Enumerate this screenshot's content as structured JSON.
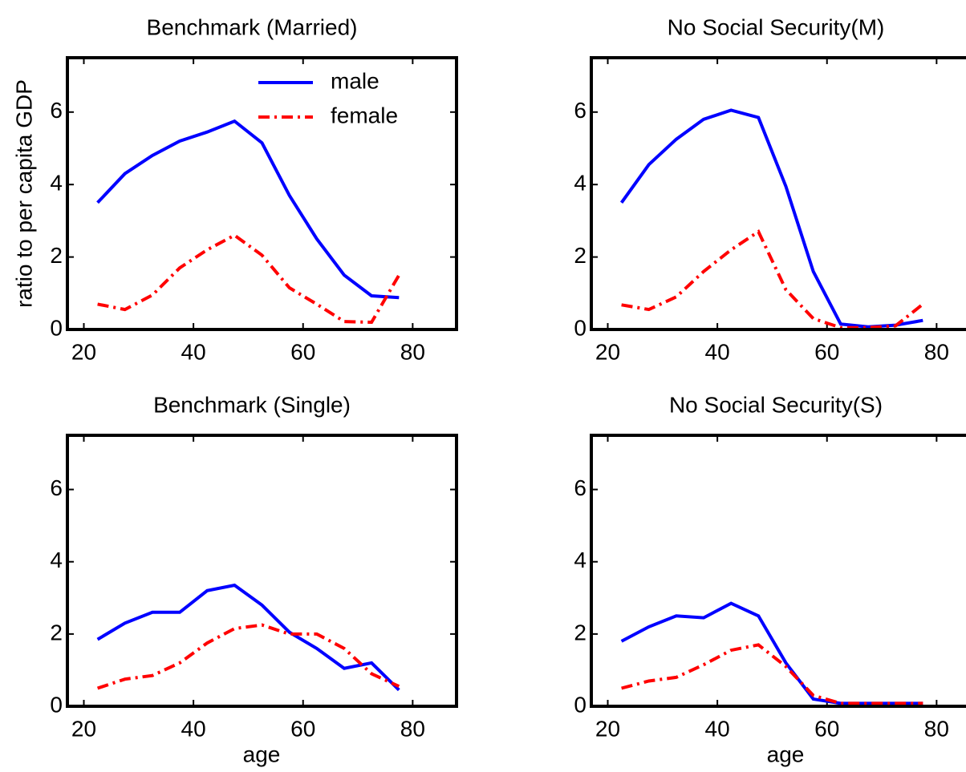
{
  "chart_data": [
    {
      "type": "line",
      "title": "Benchmark (Married)",
      "y_label": "ratio to per capita GDP",
      "x": [
        22.5,
        27.5,
        32.5,
        37.5,
        42.5,
        47.5,
        52.5,
        57.5,
        62.5,
        67.5,
        72.5,
        77.5
      ],
      "series": [
        {
          "name": "male",
          "color": "#0000ff",
          "dash": "solid",
          "values": [
            3.5,
            4.3,
            4.8,
            5.2,
            5.45,
            5.75,
            5.15,
            3.7,
            2.5,
            1.5,
            0.93,
            0.88
          ]
        },
        {
          "name": "female",
          "color": "#ff0000",
          "dash": "dashdot",
          "values": [
            0.7,
            0.55,
            0.95,
            1.7,
            2.2,
            2.6,
            2.05,
            1.15,
            0.7,
            0.22,
            0.2,
            1.5
          ]
        }
      ],
      "xlim": [
        17,
        88
      ],
      "ylim": [
        0,
        7.5
      ],
      "xticks": [
        20,
        40,
        60,
        80
      ],
      "yticks": [
        0,
        2,
        4,
        6
      ],
      "legend": "upper-right"
    },
    {
      "type": "line",
      "title": "No Social Security(M)",
      "x": [
        22.5,
        27.5,
        32.5,
        37.5,
        42.5,
        47.5,
        52.5,
        57.5,
        62.5,
        67.5,
        72.5,
        77.5
      ],
      "series": [
        {
          "color": "#0000ff",
          "dash": "solid",
          "values": [
            3.5,
            4.55,
            5.25,
            5.8,
            6.05,
            5.85,
            3.95,
            1.6,
            0.15,
            0.07,
            0.12,
            0.25
          ]
        },
        {
          "color": "#ff0000",
          "dash": "dashdot",
          "values": [
            0.68,
            0.55,
            0.9,
            1.6,
            2.2,
            2.7,
            1.1,
            0.3,
            0.05,
            0.05,
            0.1,
            0.7
          ]
        }
      ],
      "xlim": [
        17,
        88
      ],
      "ylim": [
        0,
        7.5
      ],
      "xticks": [
        20,
        40,
        60,
        80
      ],
      "yticks": [
        0,
        2,
        4,
        6
      ]
    },
    {
      "type": "line",
      "title": "Benchmark (Single)",
      "x_label": "age",
      "x": [
        22.5,
        27.5,
        32.5,
        37.5,
        42.5,
        47.5,
        52.5,
        57.5,
        62.5,
        67.5,
        72.5,
        77.5
      ],
      "series": [
        {
          "color": "#0000ff",
          "dash": "solid",
          "values": [
            1.85,
            2.3,
            2.6,
            2.6,
            3.2,
            3.35,
            2.8,
            2.05,
            1.6,
            1.05,
            1.2,
            0.45
          ]
        },
        {
          "color": "#ff0000",
          "dash": "dashdot",
          "values": [
            0.5,
            0.75,
            0.85,
            1.2,
            1.75,
            2.15,
            2.25,
            2.0,
            2.0,
            1.6,
            0.9,
            0.55
          ]
        }
      ],
      "xlim": [
        17,
        88
      ],
      "ylim": [
        0,
        7.5
      ],
      "xticks": [
        20,
        40,
        60,
        80
      ],
      "yticks": [
        0,
        2,
        4,
        6
      ]
    },
    {
      "type": "line",
      "title": "No Social Security(S)",
      "x_label": "age",
      "x": [
        22.5,
        27.5,
        32.5,
        37.5,
        42.5,
        47.5,
        52.5,
        57.5,
        62.5,
        67.5,
        72.5,
        77.5
      ],
      "series": [
        {
          "color": "#0000ff",
          "dash": "solid",
          "values": [
            1.8,
            2.2,
            2.5,
            2.45,
            2.85,
            2.5,
            1.2,
            0.2,
            0.08,
            0.08,
            0.08,
            0.08
          ]
        },
        {
          "color": "#ff0000",
          "dash": "dashdot",
          "values": [
            0.5,
            0.7,
            0.8,
            1.15,
            1.55,
            1.7,
            1.1,
            0.3,
            0.08,
            0.08,
            0.08,
            0.08
          ]
        }
      ],
      "xlim": [
        17,
        88
      ],
      "ylim": [
        0,
        7.5
      ],
      "xticks": [
        20,
        40,
        60,
        80
      ],
      "yticks": [
        0,
        2,
        4,
        6
      ]
    }
  ]
}
